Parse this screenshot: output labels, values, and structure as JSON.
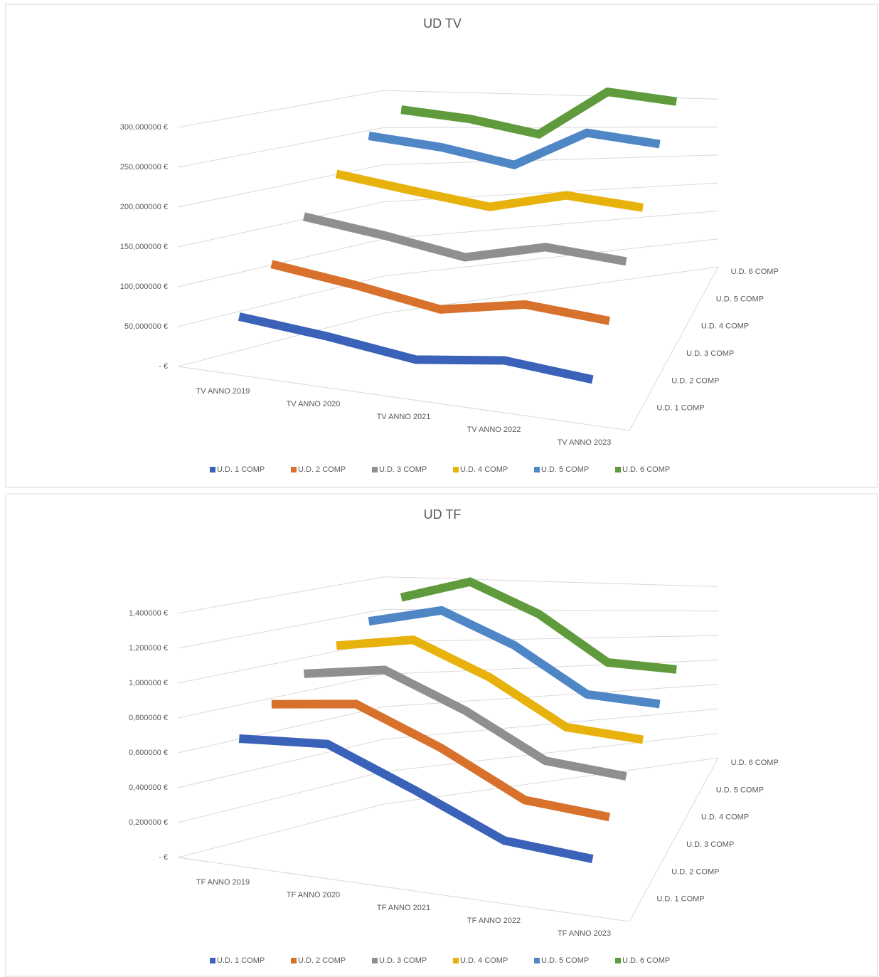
{
  "chart_data": [
    {
      "type": "line",
      "title": "UD TV",
      "categories": [
        "TV ANNO 2019",
        "TV ANNO 2020",
        "TV ANNO 2021",
        "TV ANNO 2022",
        "TV ANNO 2023"
      ],
      "series": [
        {
          "name": "U.D. 1 COMP",
          "color": "#3a62b8",
          "values": [
            65,
            55,
            40,
            55,
            45
          ]
        },
        {
          "name": "U.D. 2 COMP",
          "color": "#d7712c",
          "values": [
            120,
            105,
            85,
            105,
            95
          ]
        },
        {
          "name": "U.D. 3 COMP",
          "color": "#8f8f8f",
          "values": [
            170,
            155,
            135,
            160,
            150
          ]
        },
        {
          "name": "U.D. 4 COMP",
          "color": "#e8b20c",
          "values": [
            215,
            200,
            185,
            210,
            200
          ]
        },
        {
          "name": "U.D. 5 COMP",
          "color": "#4f86c6",
          "values": [
            255,
            245,
            225,
            280,
            270
          ]
        },
        {
          "name": "U.D. 6 COMP",
          "color": "#5f9a3c",
          "values": [
            280,
            270,
            250,
            320,
            310
          ]
        }
      ],
      "ylim": [
        0,
        350
      ],
      "yticks": [
        {
          "value": 0,
          "label": "- €"
        },
        {
          "value": 50,
          "label": "50,000000 €"
        },
        {
          "value": 100,
          "label": "100,000000 €"
        },
        {
          "value": 150,
          "label": "150,000000 €"
        },
        {
          "value": 200,
          "label": "200,000000 €"
        },
        {
          "value": 250,
          "label": "250,000000 €"
        },
        {
          "value": 300,
          "label": "300,000000 €"
        }
      ],
      "grid": true,
      "legend": "bottom"
    },
    {
      "type": "line",
      "title": "UD TF",
      "categories": [
        "TF ANNO 2019",
        "TF ANNO 2020",
        "TF ANNO 2021",
        "TF ANNO 2022",
        "TF ANNO 2023"
      ],
      "series": [
        {
          "name": "U.D. 1 COMP",
          "color": "#3a62b8",
          "values": [
            0.7,
            0.75,
            0.55,
            0.32,
            0.28
          ]
        },
        {
          "name": "U.D. 2 COMP",
          "color": "#d7712c",
          "values": [
            0.85,
            0.92,
            0.72,
            0.45,
            0.4
          ]
        },
        {
          "name": "U.D. 3 COMP",
          "color": "#8f8f8f",
          "values": [
            0.98,
            1.06,
            0.86,
            0.58,
            0.52
          ]
        },
        {
          "name": "U.D. 4 COMP",
          "color": "#e8b20c",
          "values": [
            1.1,
            1.18,
            0.98,
            0.68,
            0.62
          ]
        },
        {
          "name": "U.D. 5 COMP",
          "color": "#4f86c6",
          "values": [
            1.2,
            1.3,
            1.1,
            0.78,
            0.72
          ]
        },
        {
          "name": "U.D. 6 COMP",
          "color": "#5f9a3c",
          "values": [
            1.3,
            1.42,
            1.22,
            0.88,
            0.82
          ]
        }
      ],
      "ylim": [
        0,
        1.6
      ],
      "yticks": [
        {
          "value": 0,
          "label": "- €"
        },
        {
          "value": 0.2,
          "label": "0,200000 €"
        },
        {
          "value": 0.4,
          "label": "0,400000 €"
        },
        {
          "value": 0.6,
          "label": "0,600000 €"
        },
        {
          "value": 0.8,
          "label": "0,800000 €"
        },
        {
          "value": 1.0,
          "label": "1,000000 €"
        },
        {
          "value": 1.2,
          "label": "1,200000 €"
        },
        {
          "value": 1.4,
          "label": "1,400000 €"
        }
      ],
      "grid": true,
      "legend": "bottom"
    }
  ]
}
